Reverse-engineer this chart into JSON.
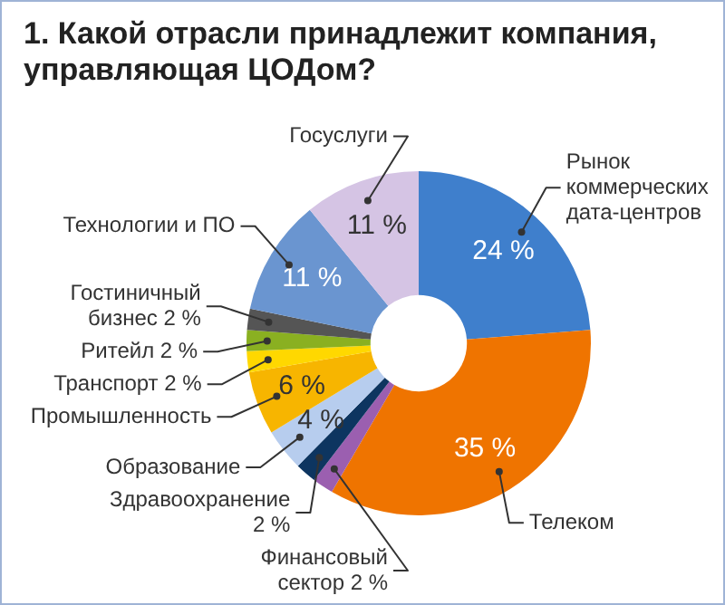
{
  "chart_data": {
    "type": "donut",
    "title": "1. Какой отрасли принадлежит компания, управляющая ЦОДом?",
    "categories": [
      "Рынок коммерческих дата-центров",
      "Телеком",
      "Финансовый сектор",
      "Здравоохранение",
      "Образование",
      "Промышленность",
      "Транспорт",
      "Ритейл",
      "Гостиничный бизнес",
      "Технологии и ПО",
      "Госуслуги"
    ],
    "values": [
      24,
      35,
      2,
      2,
      4,
      6,
      2,
      2,
      2,
      11,
      11
    ],
    "value_labels": [
      "24 %",
      "35 %",
      "2 %",
      "2 %",
      "4 %",
      "6 %",
      "2 %",
      "2 %",
      "2 %",
      "11 %",
      "11 %"
    ],
    "colors": [
      "#3f7fcc",
      "#ef7400",
      "#9b5fb0",
      "#0d3560",
      "#b7cdee",
      "#f7b500",
      "#ffd800",
      "#8ab021",
      "#555555",
      "#6a95d0",
      "#d5c4e4"
    ],
    "legend": false
  }
}
